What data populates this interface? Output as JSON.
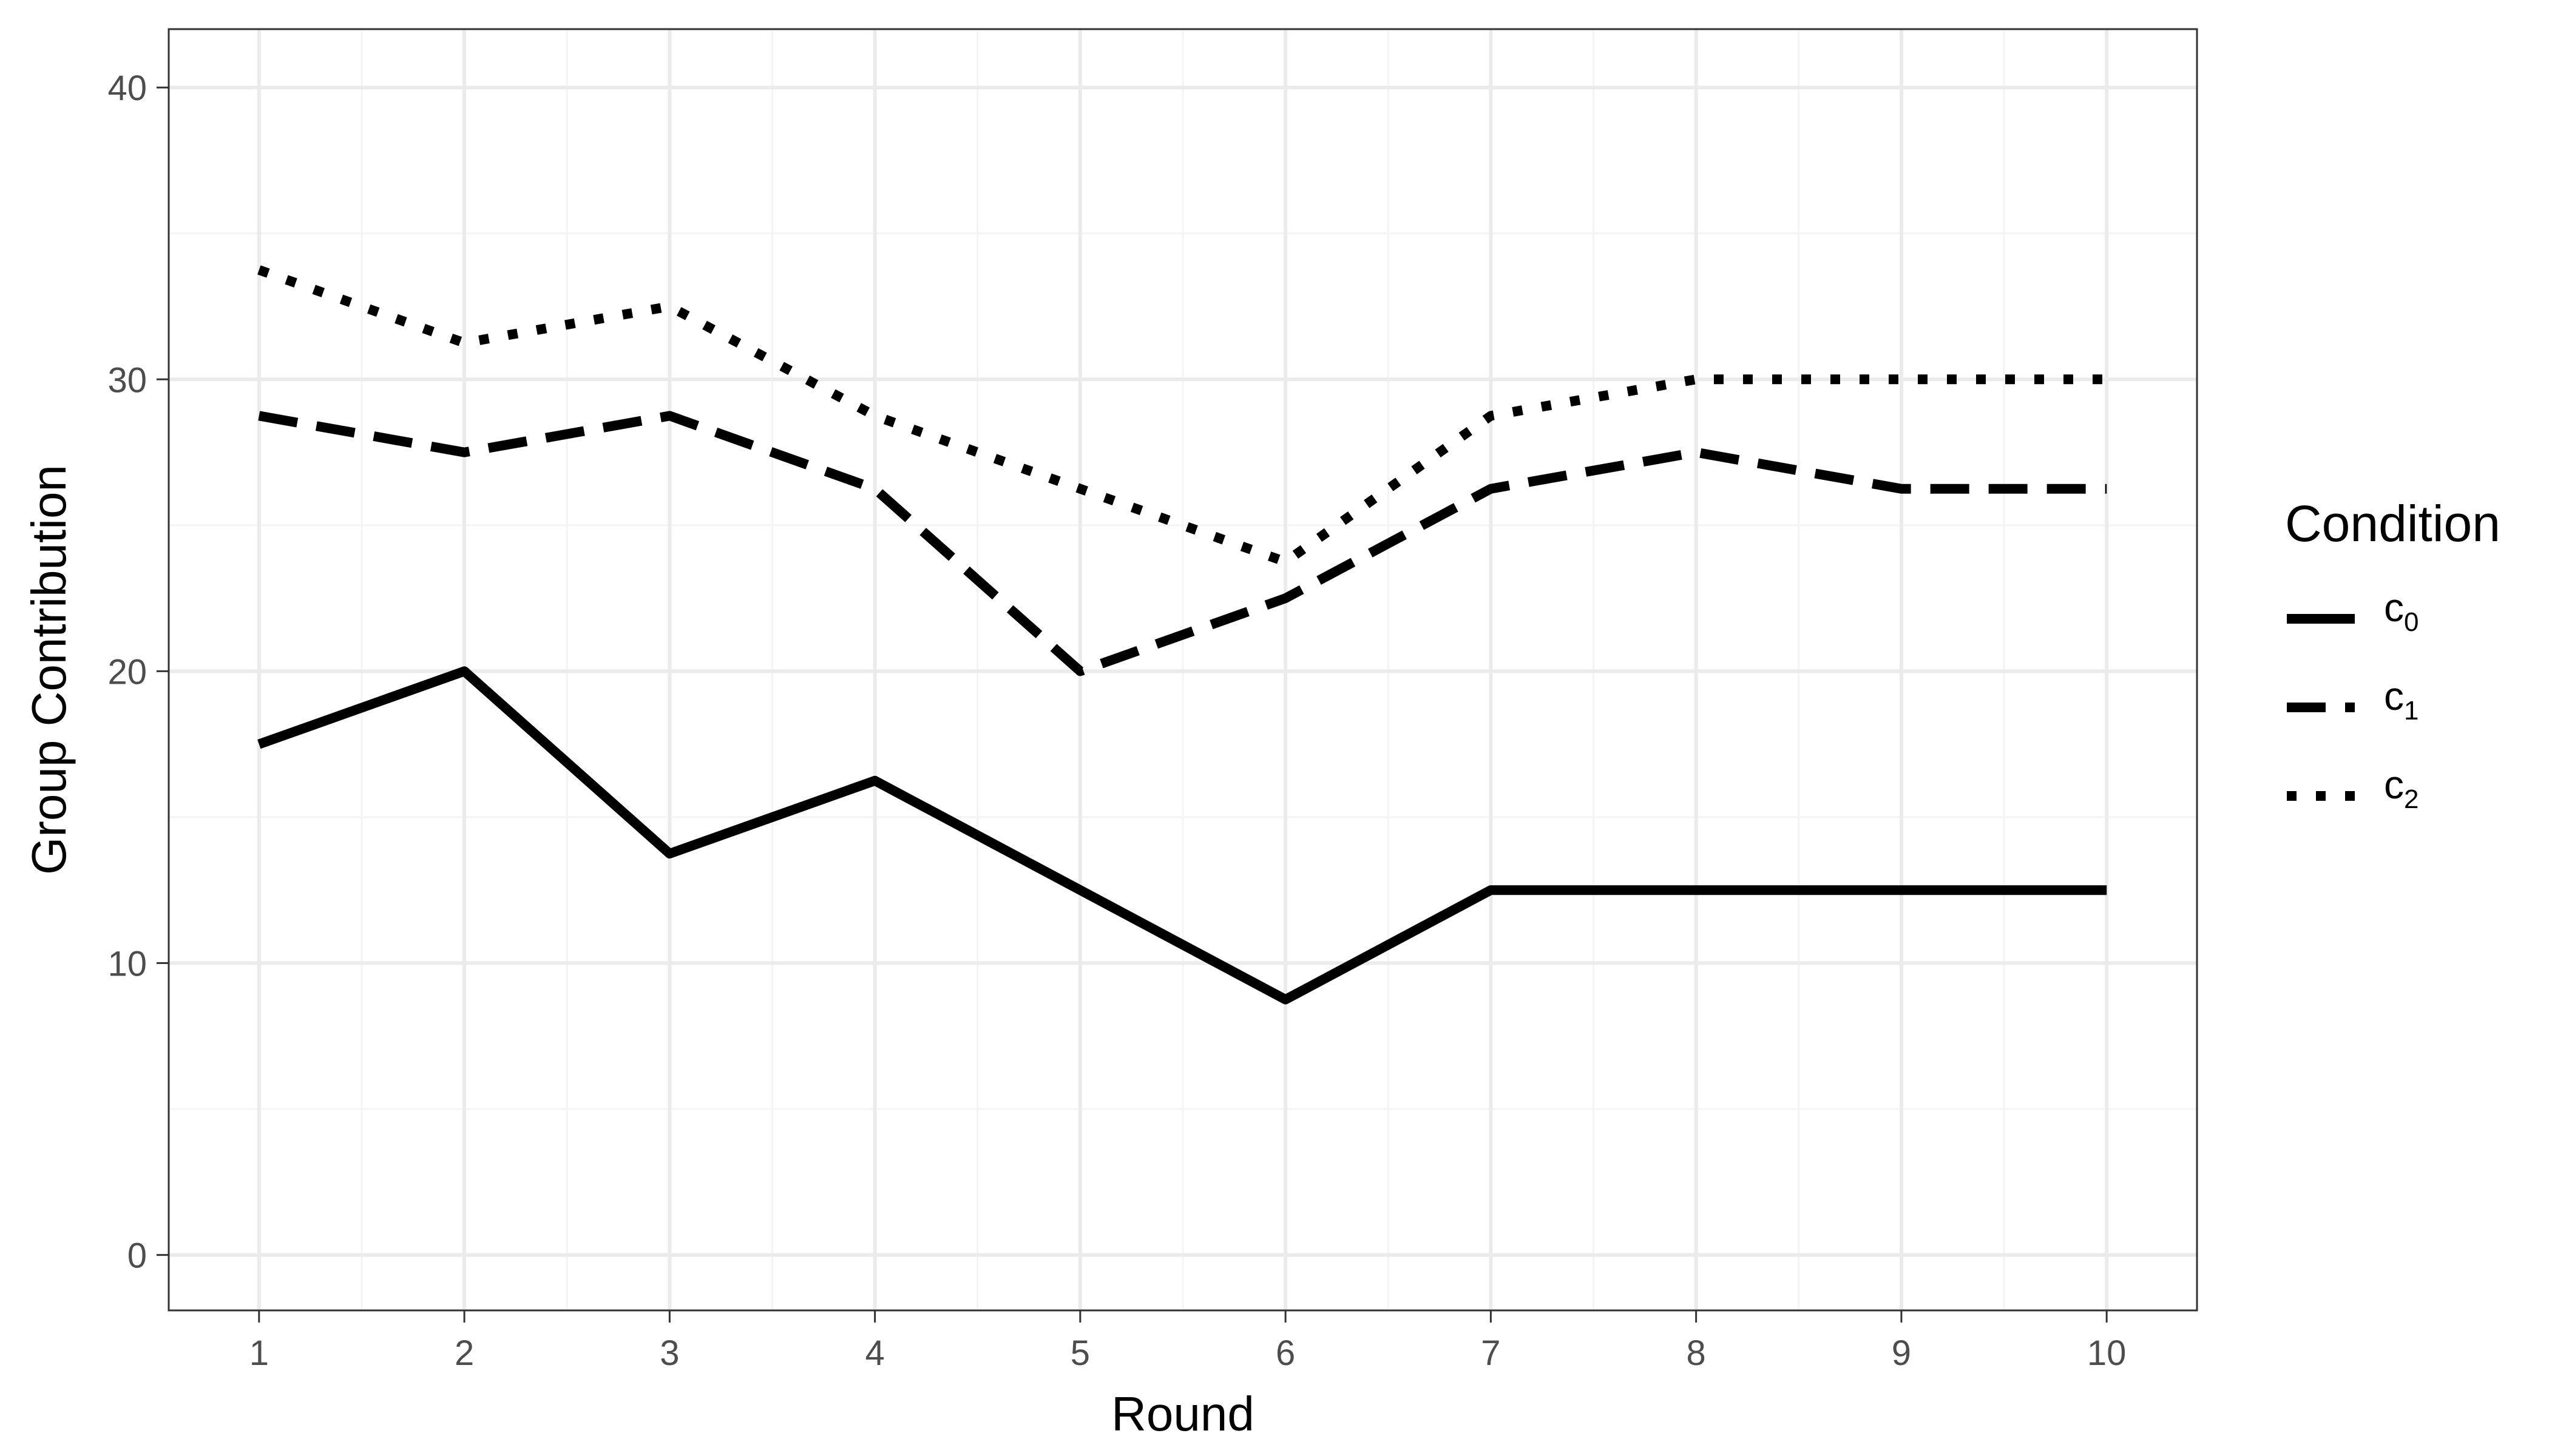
{
  "chart_data": {
    "type": "line",
    "title": "",
    "xlabel": "Round",
    "ylabel": "Group Contribution",
    "x": [
      1,
      2,
      3,
      4,
      5,
      6,
      7,
      8,
      9,
      10
    ],
    "xlim": [
      0.56,
      10.44
    ],
    "ylim": [
      -1.9,
      42
    ],
    "x_ticks": [
      1,
      2,
      3,
      4,
      5,
      6,
      7,
      8,
      9,
      10
    ],
    "y_ticks": [
      0,
      10,
      20,
      30,
      40
    ],
    "grid": true,
    "legend_title": "Condition",
    "legend_position": "right",
    "series": [
      {
        "name": "c0",
        "label_base": "c",
        "label_sub": "0",
        "linestyle": "solid",
        "values": [
          17.5,
          20.0,
          13.75,
          16.25,
          12.5,
          8.75,
          12.5,
          12.5,
          12.5,
          12.5
        ]
      },
      {
        "name": "c1",
        "label_base": "c",
        "label_sub": "1",
        "linestyle": "dashed",
        "values": [
          28.75,
          27.5,
          28.75,
          26.25,
          20.0,
          22.5,
          26.25,
          27.5,
          26.25,
          26.25
        ]
      },
      {
        "name": "c2",
        "label_base": "c",
        "label_sub": "2",
        "linestyle": "dotted",
        "values": [
          33.75,
          31.25,
          32.5,
          28.75,
          26.25,
          23.75,
          28.75,
          30.0,
          30.0,
          30.0
        ]
      }
    ],
    "colors": {
      "line": "#000000",
      "grid_major": "#ebebeb",
      "grid_minor": "#f4f4f4",
      "panel_border": "#333333",
      "tick_text": "#4d4d4d"
    }
  }
}
